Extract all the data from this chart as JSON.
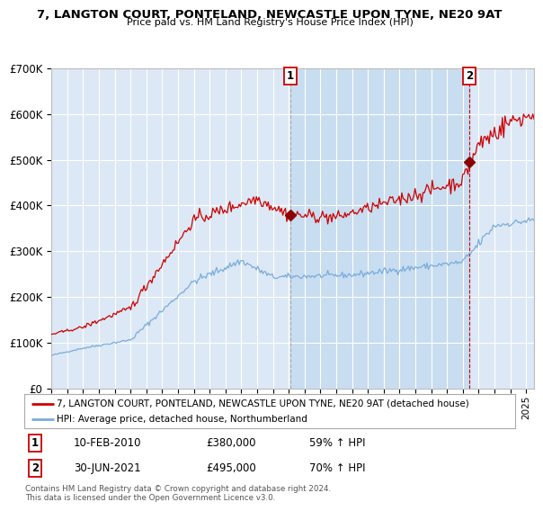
{
  "title": "7, LANGTON COURT, PONTELAND, NEWCASTLE UPON TYNE, NE20 9AT",
  "subtitle": "Price paid vs. HM Land Registry's House Price Index (HPI)",
  "ylim": [
    0,
    700000
  ],
  "yticks": [
    0,
    100000,
    200000,
    300000,
    400000,
    500000,
    600000,
    700000
  ],
  "ytick_labels": [
    "£0",
    "£100K",
    "£200K",
    "£300K",
    "£400K",
    "£500K",
    "£600K",
    "£700K"
  ],
  "red_line_color": "#cc0000",
  "blue_line_color": "#7aacda",
  "background_color": "#ffffff",
  "plot_bg_color": "#dce8f5",
  "shaded_color": "#c8ddf0",
  "grid_color": "#ffffff",
  "sale1_date_label": "10-FEB-2010",
  "sale1_price": 380000,
  "sale1_hpi_pct": "59%",
  "sale2_date_label": "30-JUN-2021",
  "sale2_price": 495000,
  "sale2_hpi_pct": "70%",
  "legend_line1": "7, LANGTON COURT, PONTELAND, NEWCASTLE UPON TYNE, NE20 9AT (detached house)",
  "legend_line2": "HPI: Average price, detached house, Northumberland",
  "footnote": "Contains HM Land Registry data © Crown copyright and database right 2024.\nThis data is licensed under the Open Government Licence v3.0.",
  "sale1_x": 2010.083,
  "sale2_x": 2021.417
}
